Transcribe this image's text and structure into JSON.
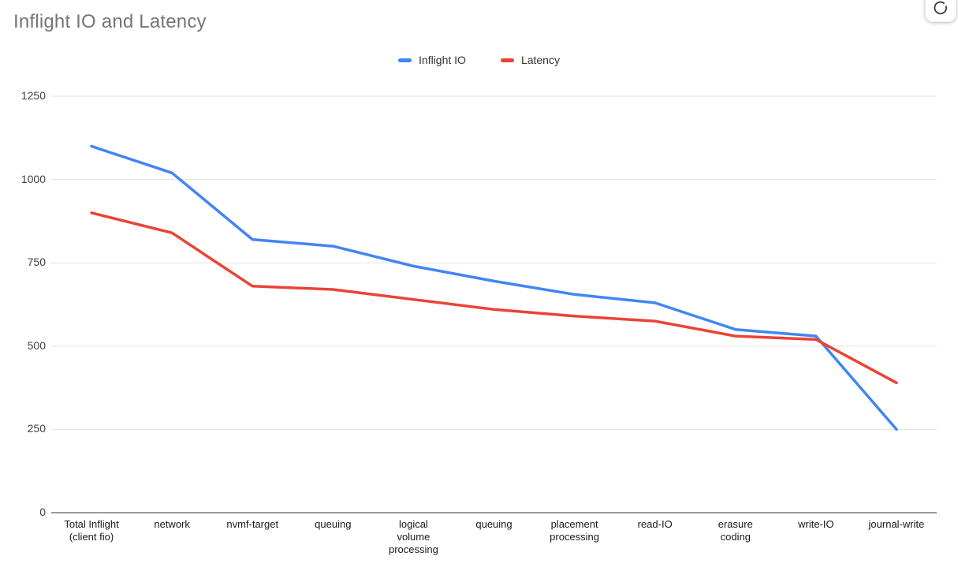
{
  "header": {
    "title": "Inflight IO and Latency"
  },
  "toolbar": {
    "icons": [
      "refresh-icon"
    ]
  },
  "colors": {
    "series_inflight_io": "#4285F4",
    "series_latency": "#EA4335",
    "title_text": "#757575",
    "axis_text": "#424242",
    "gridline": "#e3e3e3",
    "axis_line": "#333333",
    "background": "#FFFFFF"
  },
  "chart_data": {
    "type": "line",
    "title": "Inflight IO and Latency",
    "categories": [
      "Total Inflight\n(client fio)",
      "network",
      "nvmf-target",
      "queuing",
      "logical\nvolume\nprocessing",
      "queuing",
      "placement\nprocessing",
      "read-IO",
      "erasure\ncoding",
      "write-IO",
      "journal-write"
    ],
    "series": [
      {
        "name": "Inflight IO",
        "color": "#4285F4",
        "values": [
          1100,
          1020,
          820,
          800,
          740,
          695,
          655,
          630,
          550,
          530,
          250
        ]
      },
      {
        "name": "Latency",
        "color": "#EA4335",
        "values": [
          900,
          840,
          680,
          670,
          640,
          610,
          590,
          575,
          530,
          520,
          390
        ]
      }
    ],
    "xlabel": "",
    "ylabel": "",
    "ylim": [
      0,
      1250
    ],
    "yticks": [
      0,
      250,
      500,
      750,
      1000,
      1250
    ],
    "grid": "horizontal",
    "legend_position": "top"
  }
}
